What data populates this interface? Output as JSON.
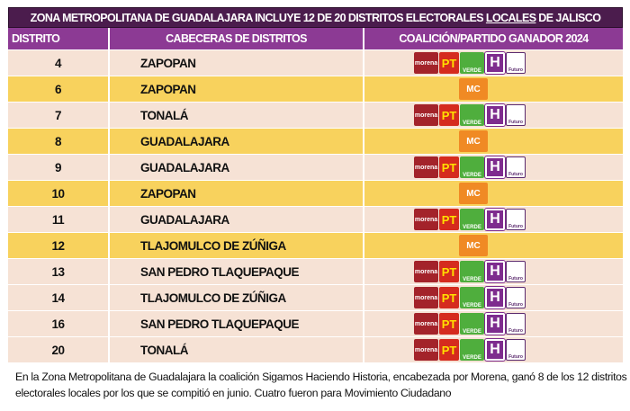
{
  "title": {
    "pre": "ZONA METROPOLITANA DE GUADALAJARA INCLUYE 12 DE 20  DISTRITOS ELECTORALES ",
    "underlined": "LOCALES",
    "post": " DE JALISCO"
  },
  "headers": {
    "district": "DISTRITO",
    "cabecera": "CABECERAS DE DISTRITOS",
    "winner": "COALICIÓN/PARTIDO GANADOR 2024"
  },
  "logos": {
    "morena": "morena",
    "pt": "PT",
    "verde": "VERDE",
    "h": "H",
    "futuro": "Futuro",
    "mc": "MC"
  },
  "colors": {
    "title": "#4b1c4d",
    "header": "#8c3a94",
    "coalition_row": "#f6e2d5",
    "mc_row": "#f8d25d"
  },
  "rows": [
    {
      "district": "4",
      "cabecera": "ZAPOPAN",
      "winner": "coalition"
    },
    {
      "district": "6",
      "cabecera": "ZAPOPAN",
      "winner": "mc"
    },
    {
      "district": "7",
      "cabecera": "TONALÁ",
      "winner": "coalition"
    },
    {
      "district": "8",
      "cabecera": "GUADALAJARA",
      "winner": "mc"
    },
    {
      "district": "9",
      "cabecera": "GUADALAJARA",
      "winner": "coalition"
    },
    {
      "district": "10",
      "cabecera": "ZAPOPAN",
      "winner": "mc"
    },
    {
      "district": "11",
      "cabecera": "GUADALAJARA",
      "winner": "coalition"
    },
    {
      "district": "12",
      "cabecera": "TLAJOMULCO DE ZÚÑIGA",
      "winner": "mc"
    },
    {
      "district": "13",
      "cabecera": "SAN PEDRO TLAQUEPAQUE",
      "winner": "coalition"
    },
    {
      "district": "14",
      "cabecera": "TLAJOMULCO DE ZÚÑIGA",
      "winner": "coalition"
    },
    {
      "district": "16",
      "cabecera": "SAN PEDRO TLAQUEPAQUE",
      "winner": "coalition"
    },
    {
      "district": "20",
      "cabecera": "TONALÁ",
      "winner": "coalition"
    }
  ],
  "caption": "En la Zona Metropolitana de Guadalajara la coalición Sigamos Haciendo Historia, encabezada por Morena, ganó 8 de los 12 distritos electorales locales por los que se compitió en junio. Cuatro fueron para Movimiento Ciudadano"
}
